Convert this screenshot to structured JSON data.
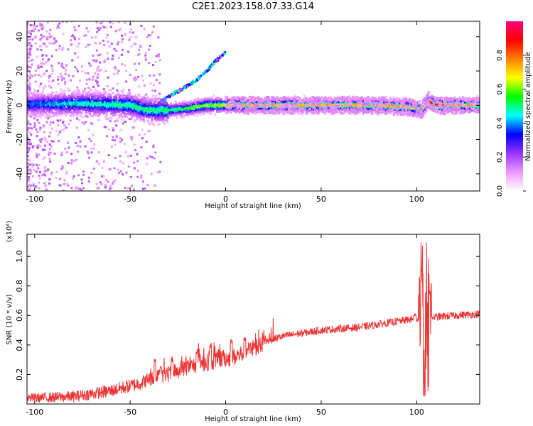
{
  "chart_data": [
    {
      "type": "heatmap",
      "title": "C2E1.2023.158.07.33.G14",
      "xlabel": "Height of straight line (km)",
      "ylabel": "Frequency (Hz)",
      "xlim": [
        -104,
        133
      ],
      "ylim": [
        -50,
        49
      ],
      "x_ticks": [
        -100,
        -50,
        0,
        50,
        100
      ],
      "y_ticks": [
        -40,
        -20,
        0,
        20,
        40
      ],
      "grid": false,
      "colorbar": {
        "label": "Normalized spectral amplitude",
        "range": [
          0.0,
          1.0
        ],
        "ticks": [
          "0.0",
          "0.2",
          "0.4",
          "0.6",
          "0.8"
        ],
        "colormap": [
          "#ffffff",
          "#ee99ff",
          "#9933ff",
          "#0000ff",
          "#00ffff",
          "#00ff00",
          "#ffff00",
          "#ff8000",
          "#ff0000",
          "#ff0080"
        ]
      },
      "ridge": {
        "frequency_hz": [
          [
            -104,
            0.5
          ],
          [
            -75,
            1
          ],
          [
            -50,
            0
          ],
          [
            -40,
            -3
          ],
          [
            -30,
            -3
          ],
          [
            -20,
            -2
          ],
          [
            -10,
            0
          ],
          [
            0,
            0
          ],
          [
            20,
            0
          ],
          [
            50,
            0
          ],
          [
            80,
            0
          ],
          [
            95,
            -1
          ],
          [
            100,
            -2
          ],
          [
            103,
            -3
          ],
          [
            106,
            3
          ],
          [
            110,
            0
          ],
          [
            133,
            0
          ]
        ],
        "amplitude": [
          [
            -104,
            0.35
          ],
          [
            -90,
            0.4
          ],
          [
            -70,
            0.45
          ],
          [
            -50,
            0.48
          ],
          [
            -30,
            0.5
          ],
          [
            -10,
            0.62
          ],
          [
            10,
            0.7
          ],
          [
            40,
            0.75
          ],
          [
            60,
            0.72
          ],
          [
            80,
            0.74
          ],
          [
            95,
            0.76
          ],
          [
            100,
            0.7
          ],
          [
            110,
            0.95
          ],
          [
            120,
            0.75
          ],
          [
            133,
            0.72
          ]
        ]
      },
      "branch": [
        [
          -35,
          2
        ],
        [
          -25,
          8
        ],
        [
          -15,
          15
        ],
        [
          -10,
          20
        ],
        [
          -5,
          26
        ],
        [
          0,
          31
        ]
      ]
    },
    {
      "type": "line",
      "xlabel": "Height of straight line (km)",
      "ylabel": "SNR (10 * v/v)",
      "y_scale_label": "(x10⁴)",
      "xlim": [
        -104,
        133
      ],
      "ylim": [
        0,
        1.15
      ],
      "x_ticks": [
        -100,
        -50,
        0,
        50,
        100
      ],
      "y_ticks": [
        "0.2",
        "0.4",
        "0.6",
        "0.8",
        "1.0"
      ],
      "grid": false,
      "series": [
        {
          "color": "#ee3333",
          "trend": [
            [
              -104,
              0.04
            ],
            [
              -80,
              0.05
            ],
            [
              -60,
              0.09
            ],
            [
              -45,
              0.14
            ],
            [
              -38,
              0.18
            ],
            [
              -30,
              0.2
            ],
            [
              -20,
              0.25
            ],
            [
              -10,
              0.28
            ],
            [
              0,
              0.31
            ],
            [
              5,
              0.32
            ],
            [
              15,
              0.38
            ],
            [
              20,
              0.42
            ],
            [
              30,
              0.46
            ],
            [
              40,
              0.48
            ],
            [
              50,
              0.5
            ],
            [
              60,
              0.51
            ],
            [
              70,
              0.52
            ],
            [
              80,
              0.54
            ],
            [
              90,
              0.56
            ],
            [
              100,
              0.58
            ],
            [
              110,
              0.59
            ],
            [
              120,
              0.6
            ],
            [
              133,
              0.61
            ]
          ],
          "spikes": [
            [
              -37,
              0.3
            ],
            [
              -34,
              0.25
            ],
            [
              -28,
              0.3
            ],
            [
              -15,
              0.36
            ],
            [
              -8,
              0.4
            ],
            [
              3,
              0.42
            ],
            [
              10,
              0.43
            ],
            [
              99,
              0.6
            ],
            [
              102,
              0.82
            ],
            [
              103,
              0.9
            ],
            [
              104,
              0.06
            ],
            [
              105,
              1.1
            ],
            [
              106,
              0.1
            ],
            [
              107,
              0.76
            ]
          ]
        }
      ]
    }
  ]
}
